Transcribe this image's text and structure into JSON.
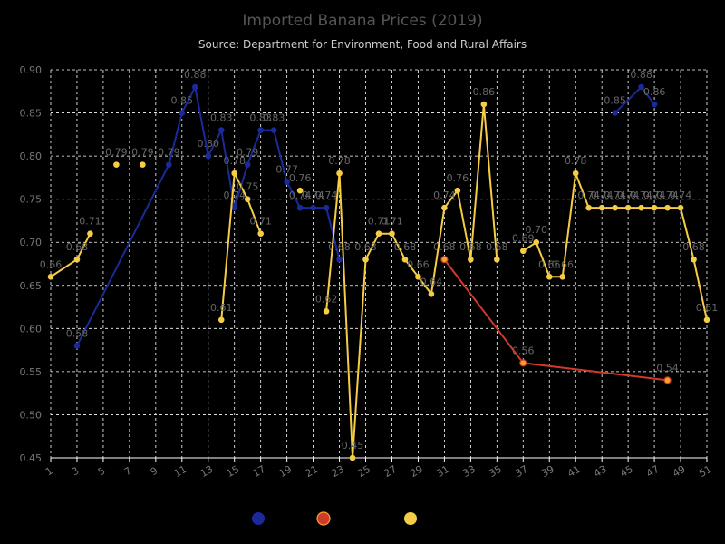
{
  "chart_data": {
    "type": "line",
    "title": "Imported Banana Prices (2019)",
    "subtitle": "Source: Department for Environment, Food and Rural Affairs",
    "xlabel": "",
    "ylabel": "",
    "xlim": [
      1,
      51
    ],
    "ylim": [
      0.45,
      0.9
    ],
    "x_ticks": [
      1,
      3,
      5,
      7,
      9,
      11,
      13,
      15,
      17,
      19,
      21,
      23,
      25,
      27,
      29,
      31,
      33,
      35,
      37,
      39,
      41,
      43,
      45,
      47,
      49,
      51
    ],
    "y_ticks": [
      0.45,
      0.5,
      0.55,
      0.6,
      0.65,
      0.7,
      0.75,
      0.8,
      0.85,
      0.9
    ],
    "grid": true,
    "legend": "bottom",
    "series": [
      {
        "color": "#1a2a9a",
        "points": [
          [
            3,
            0.58
          ],
          [
            10,
            0.79
          ],
          [
            11,
            0.85
          ],
          [
            12,
            0.88
          ],
          [
            13,
            0.8
          ],
          [
            14,
            0.83
          ],
          [
            15,
            0.74
          ],
          [
            16,
            0.79
          ],
          [
            17,
            0.83
          ],
          [
            18,
            0.83
          ],
          [
            19,
            0.77
          ],
          [
            20,
            0.74
          ],
          [
            21,
            0.74
          ],
          [
            22,
            0.74
          ],
          [
            23,
            0.68
          ],
          [
            null,
            null
          ],
          [
            44,
            0.85
          ],
          [
            46,
            0.88
          ],
          [
            47,
            0.86
          ]
        ],
        "labels": [
          "0.58",
          "0.79",
          "0.85",
          "0.88",
          "0.80",
          "0.83",
          "0.74",
          "0.79",
          "0.83",
          "0.83",
          "0.77",
          "0.74",
          "0.74",
          "0.74",
          "0.68",
          "",
          "0.85",
          "0.88",
          "0.86"
        ]
      },
      {
        "color": "#d03a2a",
        "points": [
          [
            31,
            0.68
          ],
          [
            37,
            0.56
          ],
          [
            48,
            0.54
          ]
        ],
        "labels": [
          "0.68",
          "0.56",
          "0.54"
        ]
      },
      {
        "color": "#f5cc45",
        "points": [
          [
            1,
            0.66
          ],
          [
            3,
            0.68
          ],
          [
            4,
            0.71
          ],
          [
            null,
            null
          ],
          [
            6,
            0.79
          ],
          [
            null,
            null
          ],
          [
            8,
            0.79
          ],
          [
            null,
            null
          ],
          [
            14,
            0.61
          ],
          [
            15,
            0.78
          ],
          [
            16,
            0.75
          ],
          [
            17,
            0.71
          ],
          [
            null,
            null
          ],
          [
            20,
            0.76
          ],
          [
            null,
            null
          ],
          [
            22,
            0.62
          ],
          [
            23,
            0.78
          ],
          [
            24,
            0.45
          ],
          [
            25,
            0.68
          ],
          [
            26,
            0.71
          ],
          [
            27,
            0.71
          ],
          [
            28,
            0.68
          ],
          [
            29,
            0.66
          ],
          [
            30,
            0.64
          ],
          [
            31,
            0.74
          ],
          [
            32,
            0.76
          ],
          [
            33,
            0.68
          ],
          [
            34,
            0.86
          ],
          [
            35,
            0.68
          ],
          [
            null,
            null
          ],
          [
            37,
            0.69
          ],
          [
            38,
            0.7
          ],
          [
            39,
            0.66
          ],
          [
            40,
            0.66
          ],
          [
            41,
            0.78
          ],
          [
            42,
            0.74
          ],
          [
            43,
            0.74
          ],
          [
            44,
            0.74
          ],
          [
            45,
            0.74
          ],
          [
            46,
            0.74
          ],
          [
            47,
            0.74
          ],
          [
            48,
            0.74
          ],
          [
            49,
            0.74
          ],
          [
            50,
            0.68
          ],
          [
            51,
            0.61
          ]
        ],
        "labels": [
          "0.66",
          "0.68",
          "0.71",
          "",
          "0.79",
          "",
          "0.79",
          "",
          "0.61",
          "0.78",
          "0.75",
          "0.71",
          "",
          "0.76",
          "",
          "0.62",
          "0.78",
          "0.45",
          "0.68",
          "0.71",
          "0.71",
          "0.68",
          "0.66",
          "0.64",
          "0.74",
          "0.76",
          "0.68",
          "0.86",
          "0.68",
          "",
          "0.69",
          "0.70",
          "0.66",
          "0.66",
          "0.78",
          "0.74",
          "0.74",
          "0.74",
          "0.74",
          "0.74",
          "0.74",
          "0.74",
          "0.74",
          "0.68",
          "0.61"
        ]
      }
    ]
  }
}
